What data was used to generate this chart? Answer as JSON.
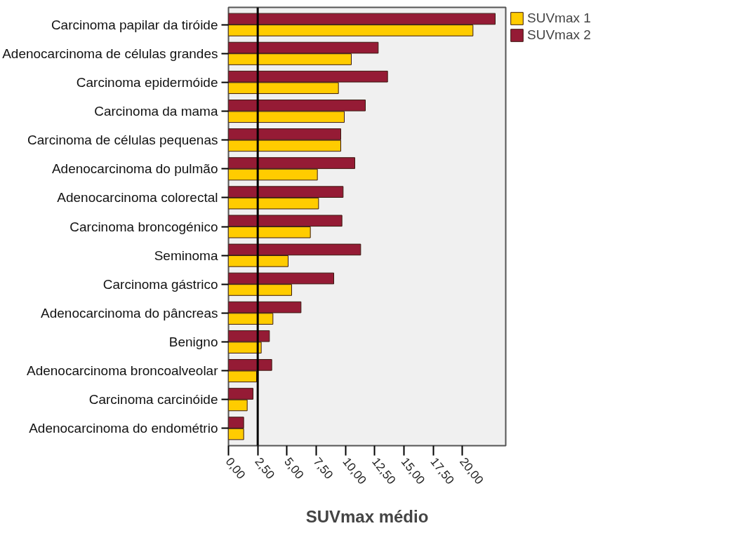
{
  "chart_data": {
    "type": "bar",
    "orientation": "horizontal",
    "xlabel": "SUVmax médio",
    "categories": [
      "Carcinoma papilar da tiróide",
      "Adenocarcinoma de células grandes",
      "Carcinoma epidermóide",
      "Carcinoma da mama",
      "Carcinoma de células pequenas",
      "Adenocarcinoma do pulmão",
      "Adenocarcinoma colorectal",
      "Carcinoma broncogénico",
      "Seminoma",
      "Carcinoma gástrico",
      "Adenocarcinoma do pâncreas",
      "Benigno",
      "Adenocarcinoma broncoalveolar",
      "Carcinoma carcinóide",
      "Adenocarcinoma do endométrio"
    ],
    "series": [
      {
        "name": "SUVmax 1",
        "color": "#ffcc00",
        "values": [
          20.9,
          10.5,
          9.4,
          9.9,
          9.6,
          7.6,
          7.7,
          7.0,
          5.1,
          5.4,
          3.8,
          2.8,
          2.4,
          1.6,
          1.3
        ]
      },
      {
        "name": "SUVmax 2",
        "color": "#951b35",
        "values": [
          22.8,
          12.8,
          13.6,
          11.7,
          9.6,
          10.8,
          9.8,
          9.7,
          11.3,
          9.0,
          6.2,
          3.5,
          3.7,
          2.1,
          1.3
        ]
      }
    ],
    "xlim": [
      0,
      23.7
    ],
    "xticks": [
      {
        "value": 0,
        "label": "0,00"
      },
      {
        "value": 2.5,
        "label": "2,50"
      },
      {
        "value": 5,
        "label": "5,00"
      },
      {
        "value": 7.5,
        "label": "7,50"
      },
      {
        "value": 10,
        "label": "10,00"
      },
      {
        "value": 12.5,
        "label": "12,50"
      },
      {
        "value": 15,
        "label": "15,00"
      },
      {
        "value": 17.5,
        "label": "17,50"
      },
      {
        "value": 20,
        "label": "20,00"
      }
    ],
    "ref_lines": [
      {
        "axis": "x",
        "value": 2.5,
        "color": "#000000"
      }
    ],
    "grid": false,
    "legend": "top right"
  }
}
